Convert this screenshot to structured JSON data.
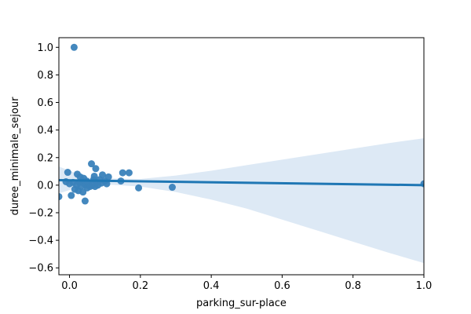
{
  "chart_data": {
    "type": "scatter",
    "title": "",
    "xlabel": "parking_sur-place",
    "ylabel": "duree_minimale_sejour",
    "xlim": [
      -0.03,
      1.0
    ],
    "ylim": [
      -0.65,
      1.07
    ],
    "grid": false,
    "legend": "none",
    "xticks": [
      0.0,
      0.2,
      0.4,
      0.6,
      0.8,
      1.0
    ],
    "xtick_labels": [
      "0.0",
      "0.2",
      "0.4",
      "0.6",
      "0.8",
      "1.0"
    ],
    "yticks": [
      -0.6,
      -0.4,
      -0.2,
      0.0,
      0.2,
      0.4,
      0.6,
      0.8,
      1.0
    ],
    "ytick_labels": [
      "−0.6",
      "−0.4",
      "−0.2",
      "0.0",
      "0.2",
      "0.4",
      "0.6",
      "0.8",
      "1.0"
    ],
    "point_color": "#3a82ba",
    "line_color": "#1f77b4",
    "band_color": "#c6dbef",
    "points": [
      [
        0.013,
        1.0
      ],
      [
        -0.03,
        -0.083
      ],
      [
        -0.005,
        0.093
      ],
      [
        -0.01,
        0.025
      ],
      [
        0.0,
        0.01
      ],
      [
        0.005,
        -0.075
      ],
      [
        0.01,
        0.02
      ],
      [
        0.015,
        -0.03
      ],
      [
        0.02,
        0.0
      ],
      [
        0.022,
        0.08
      ],
      [
        0.025,
        -0.04
      ],
      [
        0.028,
        0.02
      ],
      [
        0.03,
        0.06
      ],
      [
        0.032,
        -0.01
      ],
      [
        0.035,
        0.03
      ],
      [
        0.038,
        -0.05
      ],
      [
        0.04,
        0.05
      ],
      [
        0.042,
        0.01
      ],
      [
        0.044,
        -0.115
      ],
      [
        0.046,
        0.0
      ],
      [
        0.048,
        0.03
      ],
      [
        0.05,
        -0.02
      ],
      [
        0.052,
        0.02
      ],
      [
        0.055,
        0.01
      ],
      [
        0.058,
        -0.01
      ],
      [
        0.062,
        0.155
      ],
      [
        0.065,
        0.0
      ],
      [
        0.068,
        0.04
      ],
      [
        0.07,
        0.065
      ],
      [
        0.072,
        -0.01
      ],
      [
        0.074,
        0.12
      ],
      [
        0.076,
        0.02
      ],
      [
        0.08,
        0.0
      ],
      [
        0.085,
        0.04
      ],
      [
        0.09,
        0.015
      ],
      [
        0.093,
        0.075
      ],
      [
        0.1,
        0.03
      ],
      [
        0.105,
        0.01
      ],
      [
        0.11,
        0.06
      ],
      [
        0.145,
        0.03
      ],
      [
        0.15,
        0.09
      ],
      [
        0.168,
        0.09
      ],
      [
        0.195,
        -0.02
      ],
      [
        0.29,
        -0.015
      ],
      [
        1.0,
        0.01
      ]
    ],
    "regression": {
      "intercept": 0.035,
      "slope": -0.035
    },
    "confidence_band": {
      "x": [
        -0.03,
        0.05,
        0.1,
        0.2,
        0.3,
        0.4,
        0.5,
        0.6,
        0.7,
        0.8,
        0.9,
        1.0
      ],
      "upper": [
        0.135,
        0.055,
        0.05,
        0.045,
        0.07,
        0.105,
        0.145,
        0.185,
        0.225,
        0.265,
        0.305,
        0.34
      ],
      "lower": [
        -0.06,
        0.005,
        0.006,
        -0.01,
        -0.05,
        -0.105,
        -0.17,
        -0.25,
        -0.33,
        -0.41,
        -0.49,
        -0.565
      ]
    }
  }
}
